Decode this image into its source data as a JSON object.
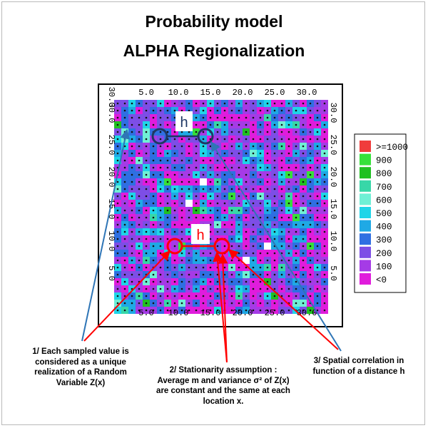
{
  "title_line1": "Probability model",
  "title_line2": "ALPHA Regionalization",
  "map": {
    "x_ticks": [
      "5.0",
      "10.0",
      "15.0",
      "20.0",
      "25.0",
      "30.0"
    ],
    "y_ticks": [
      "5.0",
      "10.0",
      "15.0",
      "20.0",
      "25.0",
      "30.0"
    ],
    "corner_label": "30.0",
    "grid_size": 30
  },
  "legend": {
    "items": [
      {
        "label": ">=1000",
        "color": "#f03c3c"
      },
      {
        "label": "900",
        "color": "#36e13a"
      },
      {
        "label": "800",
        "color": "#20c021"
      },
      {
        "label": "700",
        "color": "#38d7a8"
      },
      {
        "label": "600",
        "color": "#6ff0d5"
      },
      {
        "label": "500",
        "color": "#1fd5e8"
      },
      {
        "label": "400",
        "color": "#1fa9e5"
      },
      {
        "label": "300",
        "color": "#2f6fe2"
      },
      {
        "label": "200",
        "color": "#7d4ee6"
      },
      {
        "label": "100",
        "color": "#a53be6"
      },
      {
        "label": "<0",
        "color": "#e01cdc"
      }
    ]
  },
  "lag_labels": {
    "top": "h",
    "bottom": "h"
  },
  "annotations": {
    "note1": "1/ Each sampled value is considered as a unique realization of a Random Variable Z(x)",
    "note2": "2/ Stationarity assumption : Average m and variance σ² of Z(x) are constant and the same at each location x.",
    "note3": "3/ Spatial correlation in function of a distance h"
  },
  "colors": {
    "arrow_red": "#ff0000",
    "arrow_blue": "#2e75b6",
    "circle_dark": "#1f3864",
    "h_top_color": "#1f3864",
    "h_bottom_color": "#ff0000"
  }
}
